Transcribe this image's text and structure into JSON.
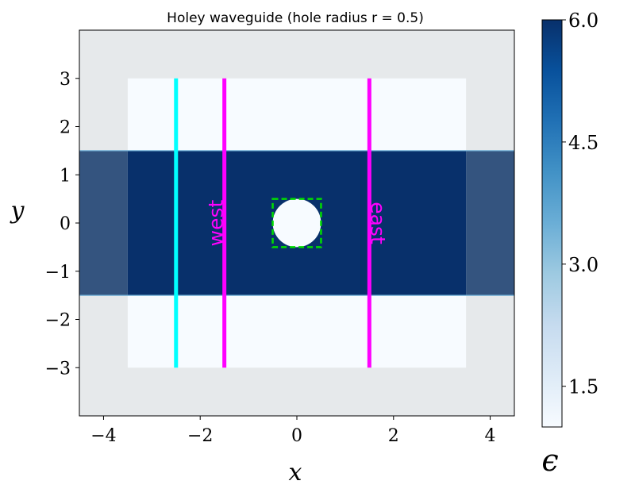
{
  "chart_data": {
    "type": "heatmap",
    "title": "Holey waveguide (hole radius r = 0.5)",
    "xlabel": "x",
    "ylabel": "y",
    "xlim": [
      -4.5,
      4.5
    ],
    "ylim": [
      -4.0,
      4.0
    ],
    "xticks": [
      -4,
      -2,
      0,
      2,
      4
    ],
    "xtick_labels": [
      "−4",
      "−2",
      "0",
      "2",
      "4"
    ],
    "yticks": [
      -3,
      -2,
      -1,
      0,
      1,
      2,
      3
    ],
    "ytick_labels": [
      "−3",
      "−2",
      "−1",
      "0",
      "1",
      "2",
      "3"
    ],
    "colorbar": {
      "label": "ϵ",
      "range": [
        1.0,
        6.0
      ],
      "ticks": [
        1.5,
        3.0,
        4.5,
        6.0
      ],
      "tick_labels": [
        "1.5",
        "3.0",
        "4.5",
        "6.0"
      ],
      "colormap": [
        "#f7fbff",
        "#deebf7",
        "#c6dbef",
        "#9ecae1",
        "#6baed6",
        "#4292c6",
        "#2171b5",
        "#08519c",
        "#08306b"
      ]
    },
    "regions": {
      "cell": {
        "xmin": -3.5,
        "xmax": 3.5,
        "ymin": -3.0,
        "ymax": 3.0,
        "epsilon": 1.0
      },
      "pml_overlay": {
        "xmin": -4.5,
        "xmax": 4.5,
        "ymin": -4.0,
        "ymax": 4.0,
        "color": "#e6e9eb"
      },
      "waveguide": {
        "xmin": -4.5,
        "xmax": 4.5,
        "ymin": -1.5,
        "ymax": 1.5,
        "epsilon": 6.0,
        "pml_color": "#34547f"
      },
      "hole": {
        "cx": 0.0,
        "cy": 0.0,
        "radius": 0.5,
        "epsilon": 1.0
      }
    },
    "source": {
      "x": -2.5,
      "ymin": -3.0,
      "ymax": 3.0,
      "color": "#00ffff"
    },
    "monitors": [
      {
        "name": "west",
        "x": -1.5,
        "ymin": -3.0,
        "ymax": 3.0,
        "color": "#ff00ff"
      },
      {
        "name": "east",
        "x": 1.5,
        "ymin": -3.0,
        "ymax": 3.0,
        "color": "#ff00ff"
      }
    ],
    "hole_box": {
      "xmin": -0.5,
      "xmax": 0.5,
      "ymin": -0.5,
      "ymax": 0.5,
      "color": "#00dd00"
    }
  }
}
